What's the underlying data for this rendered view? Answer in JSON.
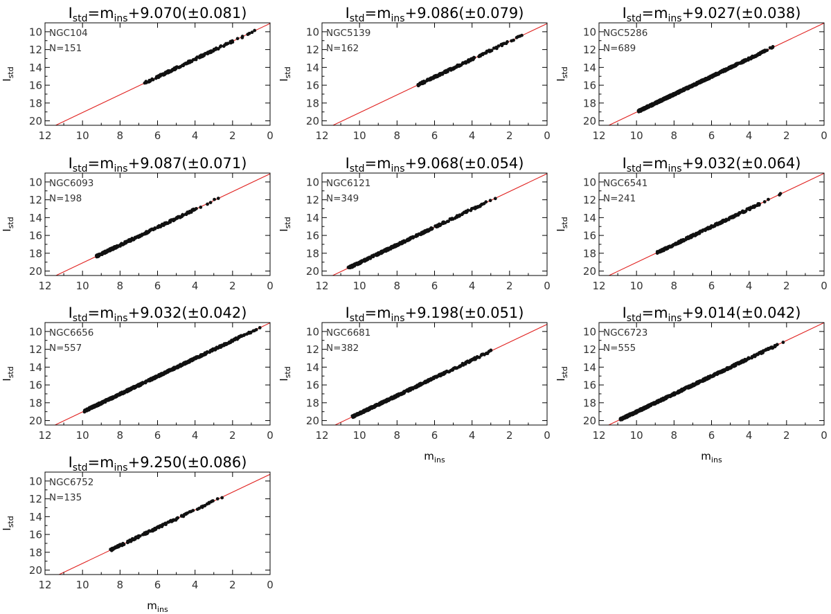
{
  "figure": {
    "x_label_base": "m",
    "x_label_sub": "ins",
    "y_label_base": "I",
    "y_label_sub": "std"
  },
  "colors": {
    "fit_line": "#e0201e",
    "points": "#111111",
    "axes": "#000000",
    "text_dim": "#333333"
  },
  "chart_data": [
    {
      "type": "scatter",
      "cluster": "NGC104",
      "n_label": "N=151",
      "zp": "9.070",
      "err": "(±0.081)",
      "xlim": [
        12,
        0
      ],
      "ylim": [
        20.5,
        9
      ],
      "fit": {
        "slope": 1,
        "intercept": 9.07
      },
      "points_mins_range": [
        0.35,
        6.7
      ],
      "n": 151
    },
    {
      "type": "scatter",
      "cluster": "NGC5139",
      "n_label": "N=162",
      "zp": "9.086",
      "err": "(±0.079)",
      "xlim": [
        12,
        0
      ],
      "ylim": [
        20.5,
        9
      ],
      "fit": {
        "slope": 1,
        "intercept": 9.086
      },
      "points_mins_range": [
        1.0,
        6.9
      ],
      "n": 162
    },
    {
      "type": "scatter",
      "cluster": "NGC5286",
      "n_label": "N=689",
      "zp": "9.027",
      "err": "(±0.038)",
      "xlim": [
        12,
        0
      ],
      "ylim": [
        20.5,
        9
      ],
      "fit": {
        "slope": 1,
        "intercept": 9.027
      },
      "points_mins_range": [
        2.5,
        9.9
      ],
      "n": 689
    },
    {
      "type": "scatter",
      "cluster": "NGC6093",
      "n_label": "N=198",
      "zp": "9.087",
      "err": "(±0.071)",
      "xlim": [
        12,
        0
      ],
      "ylim": [
        20.5,
        9
      ],
      "fit": {
        "slope": 1,
        "intercept": 9.087
      },
      "points_mins_range": [
        2.7,
        9.3
      ],
      "n": 198
    },
    {
      "type": "scatter",
      "cluster": "NGC6121",
      "n_label": "N=349",
      "zp": "9.068",
      "err": "(±0.054)",
      "xlim": [
        12,
        0
      ],
      "ylim": [
        20.5,
        9
      ],
      "fit": {
        "slope": 1,
        "intercept": 9.068
      },
      "points_mins_range": [
        2.5,
        10.6
      ],
      "n": 349
    },
    {
      "type": "scatter",
      "cluster": "NGC6541",
      "n_label": "N=241",
      "zp": "9.032",
      "err": "(±0.064)",
      "xlim": [
        12,
        0
      ],
      "ylim": [
        20.5,
        9
      ],
      "fit": {
        "slope": 1,
        "intercept": 9.032
      },
      "points_mins_range": [
        2.1,
        8.9
      ],
      "n": 241
    },
    {
      "type": "scatter",
      "cluster": "NGC6656",
      "n_label": "N=557",
      "zp": "9.032",
      "err": "(±0.042)",
      "xlim": [
        12,
        0
      ],
      "ylim": [
        20.5,
        9
      ],
      "fit": {
        "slope": 1,
        "intercept": 9.032
      },
      "points_mins_range": [
        0.35,
        9.9
      ],
      "n": 557
    },
    {
      "type": "scatter",
      "cluster": "NGC6681",
      "n_label": "N=382",
      "zp": "9.198",
      "err": "(±0.051)",
      "xlim": [
        12,
        0
      ],
      "ylim": [
        20.5,
        9
      ],
      "fit": {
        "slope": 1,
        "intercept": 9.198
      },
      "points_mins_range": [
        2.6,
        10.4
      ],
      "n": 382
    },
    {
      "type": "scatter",
      "cluster": "NGC6723",
      "n_label": "N=555",
      "zp": "9.014",
      "err": "(±0.042)",
      "xlim": [
        12,
        0
      ],
      "ylim": [
        20.5,
        9
      ],
      "fit": {
        "slope": 1,
        "intercept": 9.014
      },
      "points_mins_range": [
        2.1,
        10.9
      ],
      "n": 555
    },
    {
      "type": "scatter",
      "cluster": "NGC6752",
      "n_label": "N=135",
      "zp": "9.250",
      "err": "(±0.086)",
      "xlim": [
        12,
        0
      ],
      "ylim": [
        20.5,
        9
      ],
      "fit": {
        "slope": 1,
        "intercept": 9.25
      },
      "points_mins_range": [
        2.3,
        8.6
      ],
      "n": 135
    }
  ],
  "panel_layout": {
    "columns": 3,
    "x_ticks": [
      12,
      10,
      8,
      6,
      4,
      2,
      0
    ],
    "y_ticks": [
      10,
      12,
      14,
      16,
      18,
      20
    ],
    "x_label_panels": [
      7,
      8,
      9
    ]
  }
}
